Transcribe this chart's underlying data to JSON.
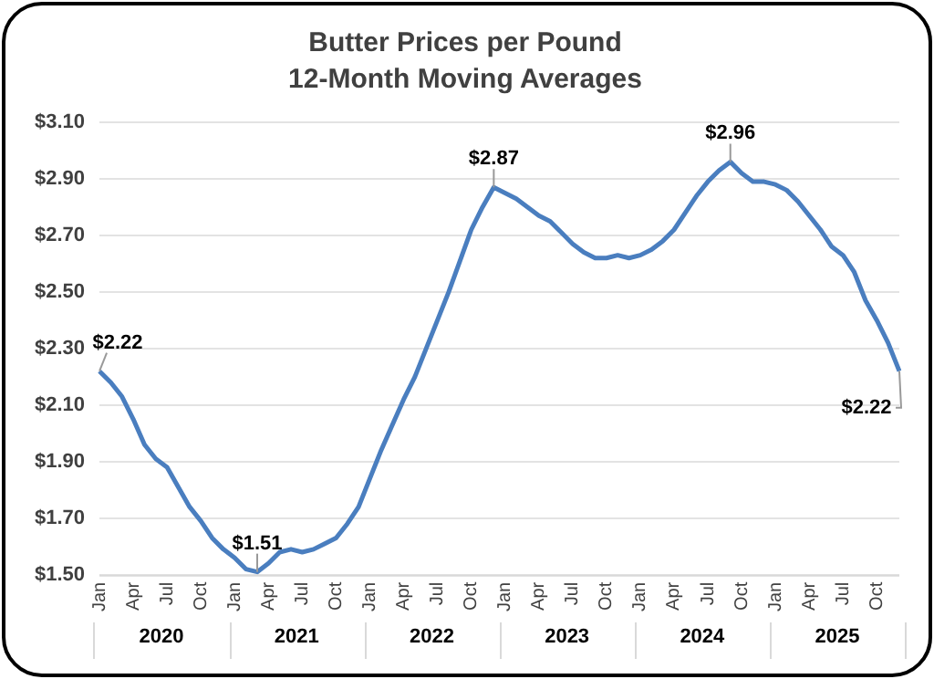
{
  "chart_data": {
    "type": "line",
    "title": "Butter Prices per Pound",
    "subtitle": "12-Month Moving Averages",
    "categories": [
      "Jan",
      null,
      null,
      "Apr",
      null,
      null,
      "Jul",
      null,
      null,
      "Oct",
      null,
      null,
      "Jan",
      null,
      null,
      "Apr",
      null,
      null,
      "Jul",
      null,
      null,
      "Oct",
      null,
      null,
      "Jan",
      null,
      null,
      "Apr",
      null,
      null,
      "Jul",
      null,
      null,
      "Oct",
      null,
      null,
      "Jan",
      null,
      null,
      "Apr",
      null,
      null,
      "Jul",
      null,
      null,
      "Oct",
      null,
      null,
      "Jan",
      null,
      null,
      "Apr",
      null,
      null,
      "Jul",
      null,
      null,
      "Oct",
      null,
      null,
      "Jan",
      null,
      null,
      "Apr",
      null,
      null,
      "Jul",
      null,
      null,
      "Oct",
      null,
      null
    ],
    "annotations": [
      "2020",
      "2021",
      "2022",
      "2023",
      "2024",
      "2025"
    ],
    "series": [
      {
        "color": "#4a7ebf",
        "values": [
          2.22,
          2.18,
          2.13,
          2.05,
          1.96,
          1.91,
          1.88,
          1.81,
          1.74,
          1.69,
          1.63,
          1.59,
          1.56,
          1.52,
          1.51,
          1.54,
          1.58,
          1.59,
          1.58,
          1.59,
          1.61,
          1.63,
          1.68,
          1.74,
          1.84,
          1.94,
          2.03,
          2.12,
          2.2,
          2.3,
          2.4,
          2.5,
          2.61,
          2.72,
          2.8,
          2.87,
          2.85,
          2.83,
          2.8,
          2.77,
          2.75,
          2.71,
          2.67,
          2.64,
          2.62,
          2.62,
          2.63,
          2.62,
          2.63,
          2.65,
          2.68,
          2.72,
          2.78,
          2.84,
          2.89,
          2.93,
          2.96,
          2.92,
          2.89,
          2.89,
          2.88,
          2.86,
          2.82,
          2.77,
          2.72,
          2.66,
          2.63,
          2.57,
          2.47,
          2.4,
          2.32,
          2.22
        ],
        "value_labels": [
          "$2.22",
          null,
          null,
          null,
          null,
          null,
          null,
          null,
          null,
          null,
          null,
          null,
          null,
          null,
          "$1.51",
          null,
          null,
          null,
          null,
          null,
          null,
          null,
          null,
          null,
          null,
          null,
          null,
          null,
          null,
          null,
          null,
          null,
          null,
          null,
          null,
          "$2.87",
          null,
          null,
          null,
          null,
          null,
          null,
          null,
          null,
          null,
          null,
          null,
          null,
          null,
          null,
          null,
          null,
          null,
          null,
          null,
          null,
          "$2.96",
          null,
          null,
          null,
          null,
          null,
          null,
          null,
          null,
          null,
          null,
          null,
          null,
          null,
          null,
          "$2.22"
        ]
      }
    ],
    "ylim": [
      1.5,
      3.1
    ],
    "yticks": [
      {
        "value": 1.5,
        "label": "$1.50"
      },
      {
        "value": 1.7,
        "label": "$1.70"
      },
      {
        "value": 1.9,
        "label": "$1.90"
      },
      {
        "value": 2.1,
        "label": "$2.10"
      },
      {
        "value": 2.3,
        "label": "$2.30"
      },
      {
        "value": 2.5,
        "label": "$2.50"
      },
      {
        "value": 2.7,
        "label": "$2.70"
      },
      {
        "value": 2.9,
        "label": "$2.90"
      },
      {
        "value": 3.1,
        "label": "$3.10"
      }
    ],
    "grid": "y",
    "legend": false,
    "marker": "none",
    "line_style": "solid"
  }
}
